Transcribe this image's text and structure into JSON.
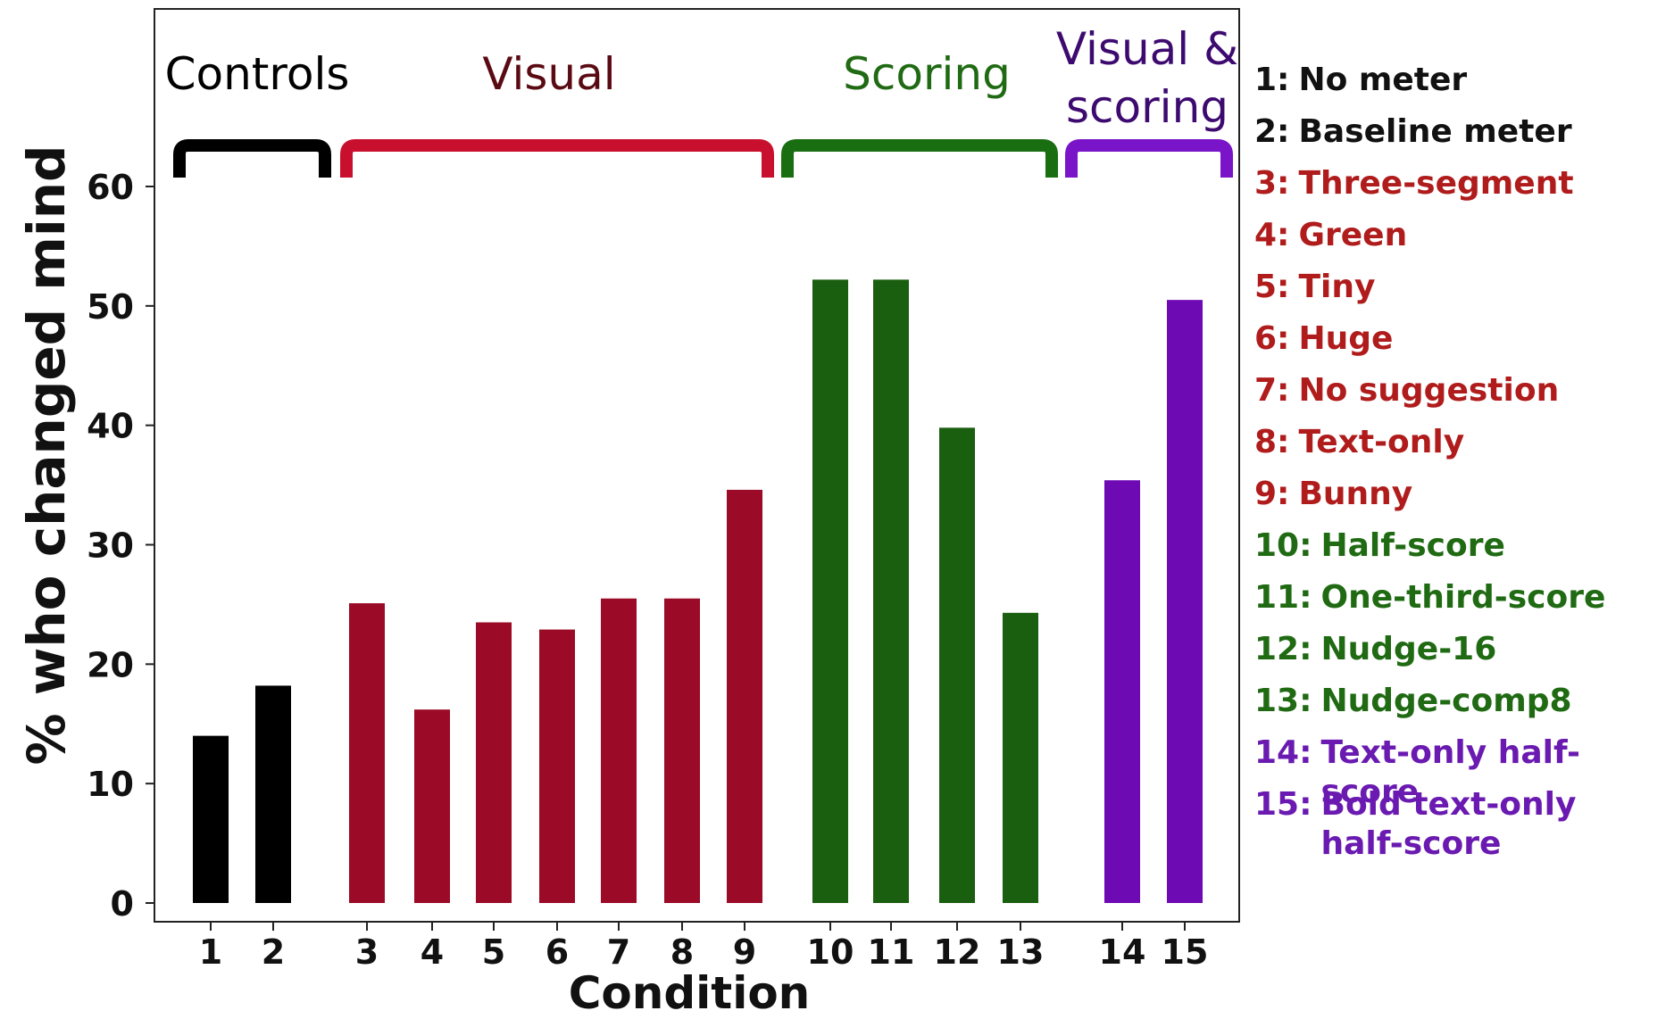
{
  "chart_data": {
    "type": "bar",
    "xlabel": "Condition",
    "ylabel": "% who changed mind",
    "ylim": [
      0,
      60
    ],
    "yticks": [
      0,
      10,
      20,
      30,
      40,
      50,
      60
    ],
    "categories": [
      "1",
      "2",
      "3",
      "4",
      "5",
      "6",
      "7",
      "8",
      "9",
      "10",
      "11",
      "12",
      "13",
      "14",
      "15"
    ],
    "values": [
      14,
      18.2,
      25.1,
      16.2,
      23.5,
      22.9,
      25.5,
      25.5,
      34.6,
      52.2,
      52.2,
      39.8,
      24.3,
      35.4,
      50.5
    ],
    "groups": [
      {
        "name": "Controls",
        "members": [
          1,
          2
        ],
        "color": "#000000",
        "label_color": "#000000"
      },
      {
        "name": "Visual",
        "members": [
          3,
          4,
          5,
          6,
          7,
          8,
          9
        ],
        "color": "#9b0a26",
        "label_color": "#5a0a12"
      },
      {
        "name": "Scoring",
        "members": [
          10,
          11,
          12,
          13
        ],
        "color": "#1a5e0f",
        "label_color": "#1f6a12"
      },
      {
        "name": "Visual & scoring",
        "members": [
          14,
          15
        ],
        "color": "#6e0ab4",
        "label_color": "#3d0a70"
      }
    ],
    "bracket_colors": [
      "#000000",
      "#c8102e",
      "#1a6e12",
      "#7a14c8"
    ],
    "legend": [
      {
        "num": "1:",
        "label": "No meter",
        "color": "#111111"
      },
      {
        "num": "2:",
        "label": "Baseline meter",
        "color": "#111111"
      },
      {
        "num": "3:",
        "label": "Three-segment",
        "color": "#b01c1c"
      },
      {
        "num": "4:",
        "label": "Green",
        "color": "#b01c1c"
      },
      {
        "num": "5:",
        "label": "Tiny",
        "color": "#b01c1c"
      },
      {
        "num": "6:",
        "label": "Huge",
        "color": "#b01c1c"
      },
      {
        "num": "7:",
        "label": "No suggestion",
        "color": "#b01c1c"
      },
      {
        "num": "8:",
        "label": "Text-only",
        "color": "#b01c1c"
      },
      {
        "num": "9:",
        "label": "Bunny",
        "color": "#b01c1c"
      },
      {
        "num": "10:",
        "label": "Half-score",
        "color": "#1f6a12"
      },
      {
        "num": "11:",
        "label": "One-third-score",
        "color": "#1f6a12"
      },
      {
        "num": "12:",
        "label": "Nudge-16",
        "color": "#1f6a12"
      },
      {
        "num": "13:",
        "label": "Nudge-comp8",
        "color": "#1f6a12"
      },
      {
        "num": "14:",
        "label": "Text-only half-score",
        "color": "#6a1ab0"
      },
      {
        "num": "15:",
        "label": "Bold text-only half-score",
        "color": "#6a1ab0"
      }
    ]
  }
}
